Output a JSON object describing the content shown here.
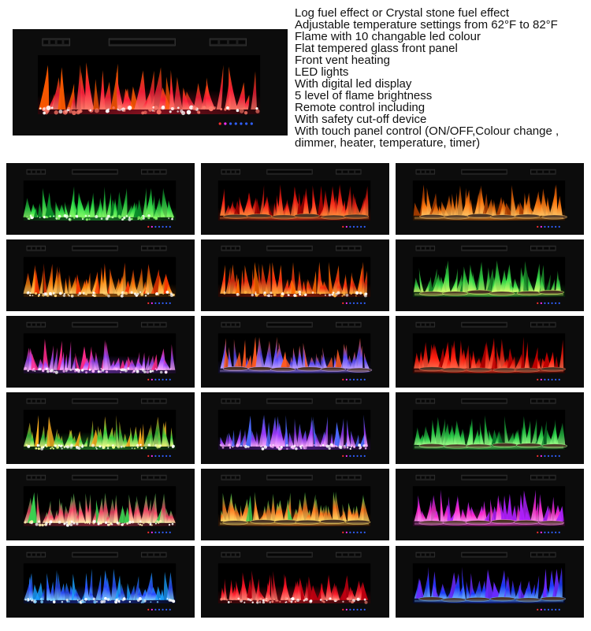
{
  "features": [
    "Log fuel effect or Crystal stone  fuel effect",
    "Adjustable temperature settings from 62°F to 82°F",
    "Flame with 10 changable led colour",
    "Flat tempered glass front panel",
    "Front vent heating",
    "LED lights",
    "With digital led display",
    "5 level of flame brightness",
    "Remote control including",
    "With safety cut-off device",
    "With touch panel control (ON/OFF,Colour change , dimmer, heater, temperature, timer)"
  ],
  "hero": {
    "fuel": "crystal",
    "flame": "#ff1f3a",
    "base": "#ff7a6a",
    "accent": "#ff5a00"
  },
  "variants": [
    {
      "name": "green-crystal",
      "fuel": "crystal",
      "flame": "#2fe04a",
      "base": "#8cff6a",
      "accent": "#0a8f2a"
    },
    {
      "name": "red-log",
      "fuel": "log",
      "flame": "#ff2a1a",
      "base": "#ff8a3a",
      "accent": "#a00000"
    },
    {
      "name": "orange-log-low",
      "fuel": "log",
      "flame": "#ff7a10",
      "base": "#ffc060",
      "accent": "#b04000"
    },
    {
      "name": "orange-crystal",
      "fuel": "crystal",
      "flame": "#ff8a10",
      "base": "#ffd070",
      "accent": "#ff3a00"
    },
    {
      "name": "red-orange-crystal",
      "fuel": "crystal",
      "flame": "#ff3010",
      "base": "#ffb040",
      "accent": "#ff6a00"
    },
    {
      "name": "green-log",
      "fuel": "log",
      "flame": "#3ae04a",
      "base": "#d8ff70",
      "accent": "#1a8a2a"
    },
    {
      "name": "purple-crystal",
      "fuel": "crystal",
      "flame": "#a04aff",
      "base": "#ffb0ff",
      "accent": "#ff2a8a"
    },
    {
      "name": "blue-purple-log",
      "fuel": "log",
      "flame": "#5a4aff",
      "base": "#c0a0ff",
      "accent": "#ff5a20"
    },
    {
      "name": "red-log-high",
      "fuel": "log",
      "flame": "#ff2010",
      "base": "#ff6a4a",
      "accent": "#c00000"
    },
    {
      "name": "green-yellow-crystal",
      "fuel": "crystal",
      "flame": "#3ad040",
      "base": "#f0ff8a",
      "accent": "#ffb020"
    },
    {
      "name": "violet-crystal",
      "fuel": "crystal",
      "flame": "#9a3aff",
      "base": "#ffb0ff",
      "accent": "#4a6aff"
    },
    {
      "name": "green-log-high",
      "fuel": "log",
      "flame": "#2ad04a",
      "base": "#a0ff8a",
      "accent": "#0a7a2a"
    },
    {
      "name": "multi-crystal",
      "fuel": "crystal",
      "flame": "#ff4a6a",
      "base": "#fff0b0",
      "accent": "#3ad050"
    },
    {
      "name": "multi-log",
      "fuel": "log",
      "flame": "#ff7a20",
      "base": "#ffe06a",
      "accent": "#3ad050"
    },
    {
      "name": "magenta-log",
      "fuel": "log",
      "flame": "#ff2ad0",
      "base": "#ff90f0",
      "accent": "#b020ff"
    },
    {
      "name": "blue-crystal",
      "fuel": "crystal",
      "flame": "#2a4aff",
      "base": "#80d0ff",
      "accent": "#1aa0ff"
    },
    {
      "name": "red-crystal",
      "fuel": "crystal",
      "flame": "#ff1a2a",
      "base": "#ff8a7a",
      "accent": "#c00010"
    },
    {
      "name": "blue-log",
      "fuel": "log",
      "flame": "#1a3aff",
      "base": "#6ab0ff",
      "accent": "#6a2aff"
    }
  ]
}
